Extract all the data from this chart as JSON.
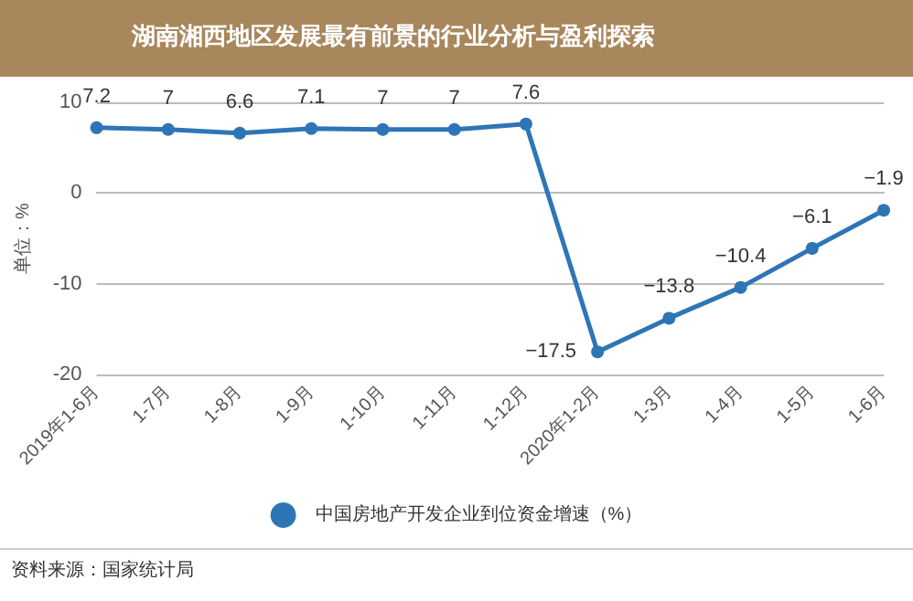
{
  "chart_data": {
    "type": "line",
    "title": "湖南湘西地区发展最有前景的行业分析与盈利探索",
    "ylabel": "单位：%",
    "categories": [
      "2019年1-6月",
      "1-7月",
      "1-8月",
      "1-9月",
      "1-10月",
      "1-11月",
      "1-12月",
      "2020年1-2月",
      "1-3月",
      "1-4月",
      "1-5月",
      "1-6月"
    ],
    "series": [
      {
        "name": "中国房地产开发企业到位资金增速（%）",
        "color": "#2e75b6",
        "values": [
          7.2,
          7,
          6.6,
          7.1,
          7,
          7,
          7.6,
          -17.5,
          -13.8,
          -10.4,
          -6.1,
          -1.9
        ]
      }
    ],
    "ylim": [
      -20,
      10
    ],
    "yticks": [
      -20,
      -10,
      0,
      10
    ],
    "grid": "y",
    "legend": "bottom",
    "marker": "circle",
    "line_style": "solid",
    "data_labels": true,
    "annotations": [
      "资料来源：国家统计局"
    ]
  }
}
